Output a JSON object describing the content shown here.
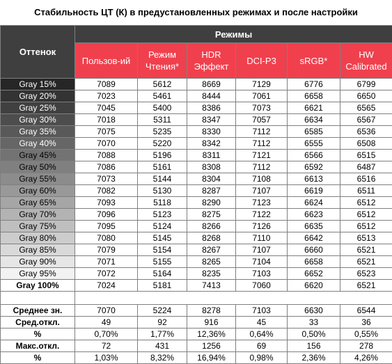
{
  "title": "Стабильность ЦТ (К) в предустановленных режимах и после настройки",
  "table": {
    "corner": "Оттенок",
    "group": "Режимы",
    "columns": [
      [
        "Пользов-ий"
      ],
      [
        "Режим",
        "Чтения*"
      ],
      [
        "HDR",
        "Эффект"
      ],
      [
        "DCI-P3"
      ],
      [
        "sRGB*"
      ],
      [
        "HW",
        "Calibrated"
      ]
    ],
    "rows": [
      {
        "label": "Gray 15%",
        "cells": [
          7089,
          5612,
          8669,
          7129,
          6776,
          6799
        ]
      },
      {
        "label": "Gray 20%",
        "cells": [
          7023,
          5461,
          8444,
          7061,
          6658,
          6650
        ]
      },
      {
        "label": "Gray 25%",
        "cells": [
          7045,
          5400,
          8386,
          7073,
          6621,
          6565
        ]
      },
      {
        "label": "Gray 30%",
        "cells": [
          7018,
          5311,
          8347,
          7057,
          6634,
          6567
        ]
      },
      {
        "label": "Gray 35%",
        "cells": [
          7075,
          5235,
          8330,
          7112,
          6585,
          6536
        ]
      },
      {
        "label": "Gray 40%",
        "cells": [
          7070,
          5220,
          8342,
          7112,
          6555,
          6508
        ]
      },
      {
        "label": "Gray 45%",
        "cells": [
          7088,
          5196,
          8311,
          7121,
          6566,
          6515
        ]
      },
      {
        "label": "Gray 50%",
        "cells": [
          7086,
          5161,
          8308,
          7112,
          6592,
          6487
        ]
      },
      {
        "label": "Gray 55%",
        "cells": [
          7073,
          5144,
          8304,
          7108,
          6613,
          6516
        ]
      },
      {
        "label": "Gray 60%",
        "cells": [
          7082,
          5130,
          8287,
          7107,
          6619,
          6511
        ]
      },
      {
        "label": "Gray 65%",
        "cells": [
          7093,
          5118,
          8290,
          7123,
          6624,
          6512
        ]
      },
      {
        "label": "Gray 70%",
        "cells": [
          7096,
          5123,
          8275,
          7122,
          6623,
          6512
        ]
      },
      {
        "label": "Gray 75%",
        "cells": [
          7095,
          5124,
          8266,
          7126,
          6635,
          6512
        ]
      },
      {
        "label": "Gray 80%",
        "cells": [
          7080,
          5145,
          8268,
          7110,
          6642,
          6513
        ]
      },
      {
        "label": "Gray 85%",
        "cells": [
          7079,
          5154,
          8267,
          7107,
          6660,
          6521
        ]
      },
      {
        "label": "Gray 90%",
        "cells": [
          7071,
          5155,
          8265,
          7104,
          6658,
          6521
        ]
      },
      {
        "label": "Gray 95%",
        "cells": [
          7072,
          5164,
          8235,
          7103,
          6652,
          6523
        ]
      },
      {
        "label": "Gray 100%",
        "cells": [
          7024,
          5181,
          7413,
          7060,
          6620,
          6521
        ]
      }
    ],
    "summary": [
      {
        "label": "Среднее зн.",
        "cells": [
          7070,
          5224,
          8278,
          7103,
          6630,
          6544
        ]
      },
      {
        "label": "Сред.откл.",
        "cells": [
          49,
          92,
          916,
          45,
          33,
          36
        ]
      },
      {
        "label": "%",
        "cells": [
          "0,70%",
          "1,77%",
          "12,36%",
          "0,64%",
          "0,50%",
          "0,55%"
        ]
      },
      {
        "label": "Макс.откл.",
        "cells": [
          72,
          431,
          1256,
          69,
          156,
          278
        ]
      },
      {
        "label": "%",
        "cells": [
          "1,03%",
          "8,32%",
          "16,94%",
          "0,98%",
          "2,36%",
          "4,26%"
        ]
      }
    ]
  }
}
